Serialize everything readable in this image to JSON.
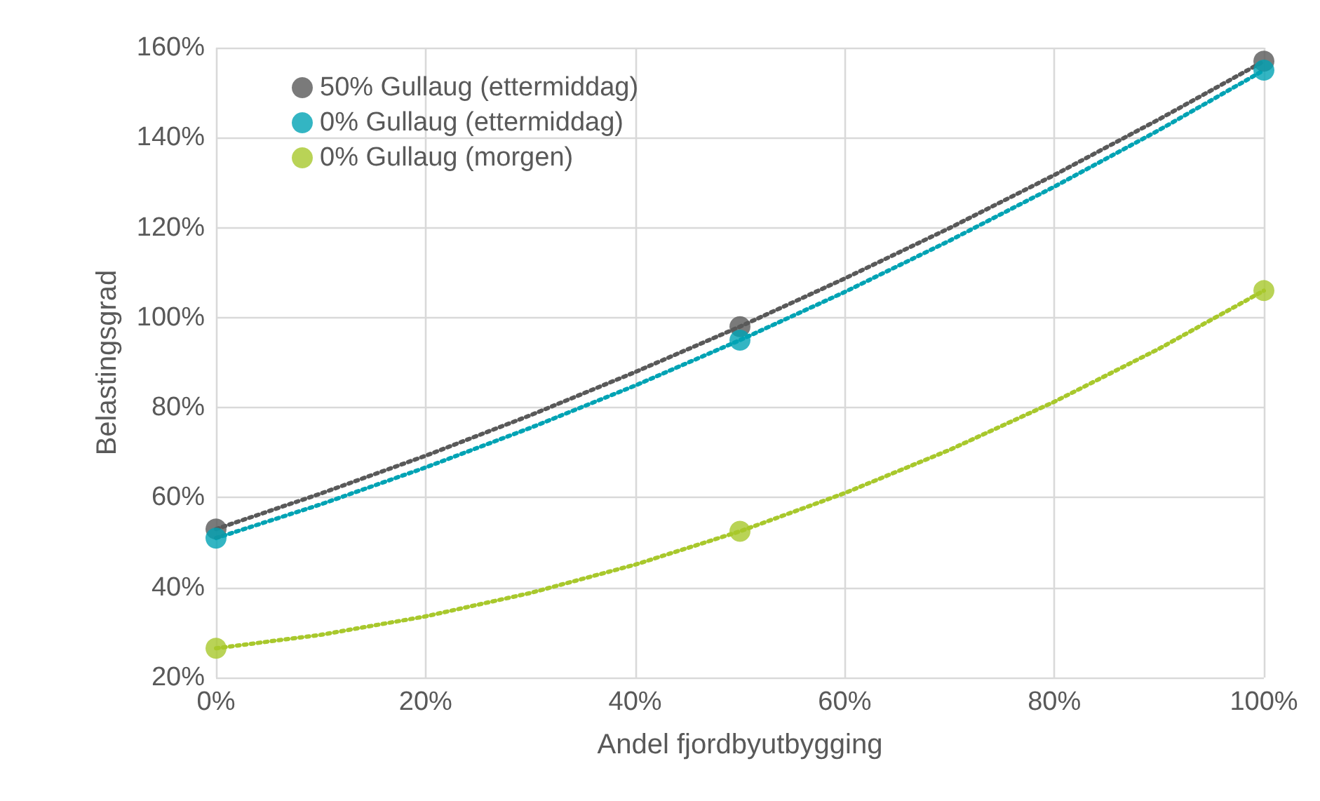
{
  "chart_data": {
    "type": "scatter",
    "xlabel": "Andel fjordbyutbygging",
    "ylabel": "Belastingsgrad",
    "xlim": [
      0,
      100
    ],
    "ylim": [
      20,
      160
    ],
    "xticks": [
      {
        "value": 0,
        "label": "0%"
      },
      {
        "value": 20,
        "label": "20%"
      },
      {
        "value": 40,
        "label": "40%"
      },
      {
        "value": 60,
        "label": "60%"
      },
      {
        "value": 80,
        "label": "80%"
      },
      {
        "value": 100,
        "label": "100%"
      }
    ],
    "yticks": [
      {
        "value": 20,
        "label": "20%"
      },
      {
        "value": 40,
        "label": "40%"
      },
      {
        "value": 60,
        "label": "60%"
      },
      {
        "value": 80,
        "label": "80%"
      },
      {
        "value": 100,
        "label": "100%"
      },
      {
        "value": 120,
        "label": "120%"
      },
      {
        "value": 140,
        "label": "140%"
      },
      {
        "value": 160,
        "label": "160%"
      }
    ],
    "grid": true,
    "legend": "top left",
    "marker": "circle",
    "series": [
      {
        "type": "line",
        "color": "#595959",
        "marker": "none",
        "line_style": "dotted",
        "x": [
          0,
          10,
          20,
          30,
          40,
          50,
          60,
          70,
          80,
          90,
          100
        ],
        "values": [
          53,
          60.9,
          69.3,
          78.3,
          87.9,
          98,
          108.7,
          119.9,
          131.7,
          144.1,
          157
        ]
      },
      {
        "type": "line",
        "color": "#00a3b4",
        "marker": "none",
        "line_style": "dotted",
        "x": [
          0,
          10,
          20,
          30,
          40,
          50,
          60,
          70,
          80,
          90,
          100
        ],
        "values": [
          51,
          58.5,
          66.7,
          75.5,
          84.9,
          95,
          105.7,
          117.1,
          129.1,
          141.7,
          155
        ]
      },
      {
        "type": "line",
        "color": "#a8c82c",
        "marker": "none",
        "line_style": "dotted",
        "x": [
          0,
          10,
          20,
          30,
          40,
          50,
          60,
          70,
          80,
          90,
          100
        ],
        "values": [
          26.5,
          29.5,
          33.6,
          38.8,
          45.1,
          52.5,
          61,
          70.6,
          81.3,
          93.1,
          106
        ]
      },
      {
        "name": "50% Gullaug (ettermiddag)",
        "color": "#595959",
        "x": [
          0,
          50,
          100
        ],
        "values": [
          53,
          98,
          157
        ]
      },
      {
        "name": "0% Gullaug (ettermiddag)",
        "color": "#00a3b4",
        "x": [
          0,
          50,
          100
        ],
        "values": [
          51,
          95,
          155
        ]
      },
      {
        "name": "0% Gullaug (morgen)",
        "color": "#a8c82c",
        "x": [
          0,
          50,
          100
        ],
        "values": [
          26.5,
          52.5,
          106
        ]
      }
    ]
  }
}
